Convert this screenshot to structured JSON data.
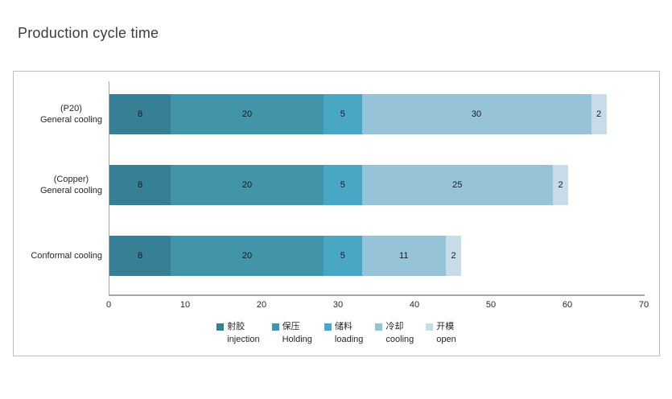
{
  "title": "Production cycle time",
  "chart_data": {
    "type": "bar",
    "orientation": "horizontal",
    "stacked": true,
    "title": "Production cycle time",
    "xlabel": "",
    "ylabel": "",
    "xlim": [
      0,
      70
    ],
    "x_ticks": [
      0,
      10,
      20,
      30,
      40,
      50,
      60,
      70
    ],
    "grid": false,
    "legend_position": "bottom",
    "categories": [
      {
        "lines": [
          "(P20)",
          "General cooling"
        ]
      },
      {
        "lines": [
          "(Copper)",
          "General cooling"
        ]
      },
      {
        "lines": [
          "Conformal cooling"
        ]
      }
    ],
    "series": [
      {
        "label_zh": "射胶",
        "label_en": "injection",
        "color": "#377F94",
        "values": [
          8,
          8,
          8
        ]
      },
      {
        "label_zh": "保压",
        "label_en": "Holding",
        "color": "#4294A9",
        "values": [
          20,
          20,
          20
        ]
      },
      {
        "label_zh": "储料",
        "label_en": "loading",
        "color": "#4AA7C3",
        "values": [
          5,
          5,
          5
        ]
      },
      {
        "label_zh": "冷却",
        "label_en": "cooling",
        "color": "#96C3D7",
        "values": [
          30,
          25,
          11
        ]
      },
      {
        "label_zh": "开模",
        "label_en": "open",
        "color": "#C7DCE8",
        "values": [
          2,
          2,
          2
        ]
      }
    ],
    "totals": [
      65,
      60,
      46
    ]
  }
}
